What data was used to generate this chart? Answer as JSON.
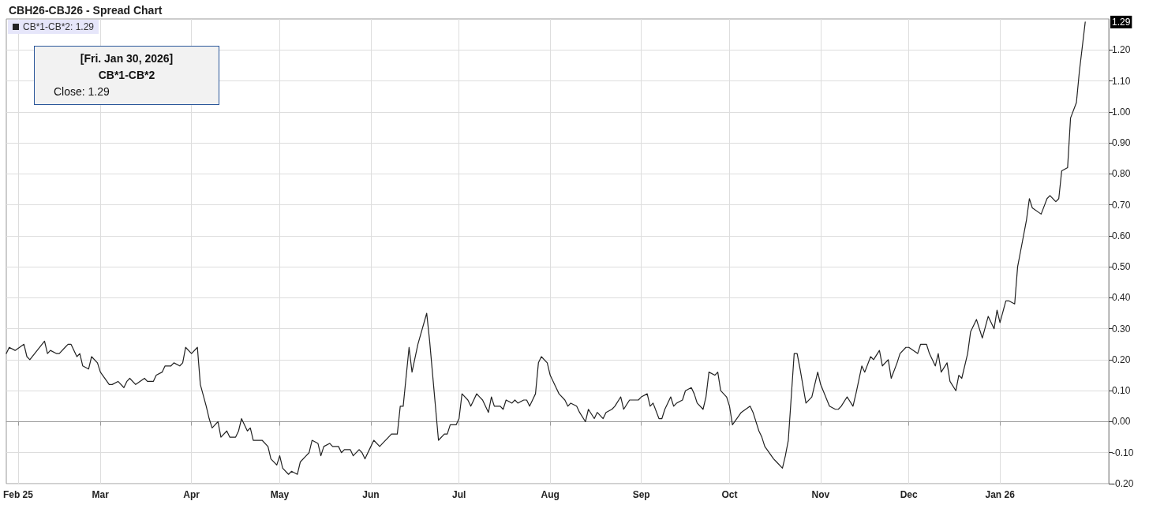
{
  "chart_data": {
    "type": "line",
    "title": "CBH26-CBJ26 - Spread Chart",
    "x": [
      "2025-01-28",
      "2025-01-29",
      "2025-01-31",
      "2025-02-03",
      "2025-02-04",
      "2025-02-05",
      "2025-02-10",
      "2025-02-11",
      "2025-02-12",
      "2025-02-14",
      "2025-02-15",
      "2025-02-17",
      "2025-02-18",
      "2025-02-19",
      "2025-02-21",
      "2025-02-22",
      "2025-02-23",
      "2025-02-25",
      "2025-02-26",
      "2025-02-28",
      "2025-03-01",
      "2025-03-04",
      "2025-03-05",
      "2025-03-07",
      "2025-03-09",
      "2025-03-10",
      "2025-03-11",
      "2025-03-13",
      "2025-03-16",
      "2025-03-17",
      "2025-03-19",
      "2025-03-20",
      "2025-03-22",
      "2025-03-23",
      "2025-03-25",
      "2025-03-26",
      "2025-03-28",
      "2025-03-29",
      "2025-03-30",
      "2025-04-01",
      "2025-04-03",
      "2025-04-04",
      "2025-04-06",
      "2025-04-07",
      "2025-04-08",
      "2025-04-10",
      "2025-04-11",
      "2025-04-13",
      "2025-04-14",
      "2025-04-16",
      "2025-04-17",
      "2025-04-18",
      "2025-04-20",
      "2025-04-21",
      "2025-04-22",
      "2025-04-25",
      "2025-04-27",
      "2025-04-28",
      "2025-04-30",
      "2025-05-01",
      "2025-05-02",
      "2025-05-04",
      "2025-05-05",
      "2025-05-07",
      "2025-05-08",
      "2025-05-10",
      "2025-05-11",
      "2025-05-12",
      "2025-05-14",
      "2025-05-15",
      "2025-05-16",
      "2025-05-18",
      "2025-05-19",
      "2025-05-21",
      "2025-05-22",
      "2025-05-23",
      "2025-05-25",
      "2025-05-26",
      "2025-05-28",
      "2025-05-29",
      "2025-05-30",
      "2025-06-01",
      "2025-06-02",
      "2025-06-04",
      "2025-06-05",
      "2025-06-07",
      "2025-06-08",
      "2025-06-10",
      "2025-06-11",
      "2025-06-12",
      "2025-06-14",
      "2025-06-15",
      "2025-06-17",
      "2025-06-20",
      "2025-06-21",
      "2025-06-24",
      "2025-06-26",
      "2025-06-27",
      "2025-06-28",
      "2025-06-30",
      "2025-07-01",
      "2025-07-02",
      "2025-07-04",
      "2025-07-05",
      "2025-07-07",
      "2025-07-08",
      "2025-07-09",
      "2025-07-11",
      "2025-07-12",
      "2025-07-13",
      "2025-07-15",
      "2025-07-16",
      "2025-07-17",
      "2025-07-19",
      "2025-07-20",
      "2025-07-21",
      "2025-07-23",
      "2025-07-24",
      "2025-07-25",
      "2025-07-27",
      "2025-07-28",
      "2025-07-29",
      "2025-07-31",
      "2025-08-01",
      "2025-08-03",
      "2025-08-04",
      "2025-08-06",
      "2025-08-07",
      "2025-08-08",
      "2025-08-10",
      "2025-08-11",
      "2025-08-13",
      "2025-08-14",
      "2025-08-16",
      "2025-08-17",
      "2025-08-19",
      "2025-08-20",
      "2025-08-22",
      "2025-08-23",
      "2025-08-25",
      "2025-08-26",
      "2025-08-28",
      "2025-08-29",
      "2025-08-31",
      "2025-09-01",
      "2025-09-03",
      "2025-09-04",
      "2025-09-05",
      "2025-09-07",
      "2025-09-08",
      "2025-09-09",
      "2025-09-11",
      "2025-09-12",
      "2025-09-13",
      "2025-09-15",
      "2025-09-16",
      "2025-09-18",
      "2025-09-19",
      "2025-09-20",
      "2025-09-22",
      "2025-09-23",
      "2025-09-24",
      "2025-09-26",
      "2025-09-27",
      "2025-09-28",
      "2025-09-30",
      "2025-10-01",
      "2025-10-02",
      "2025-10-05",
      "2025-10-08",
      "2025-10-09",
      "2025-10-11",
      "2025-10-12",
      "2025-10-13",
      "2025-10-16",
      "2025-10-17",
      "2025-10-19",
      "2025-10-20",
      "2025-10-21",
      "2025-10-23",
      "2025-10-24",
      "2025-10-25",
      "2025-10-27",
      "2025-10-29",
      "2025-10-31",
      "2025-11-01",
      "2025-11-04",
      "2025-11-06",
      "2025-11-07",
      "2025-11-08",
      "2025-11-10",
      "2025-11-12",
      "2025-11-13",
      "2025-11-15",
      "2025-11-16",
      "2025-11-18",
      "2025-11-19",
      "2025-11-21",
      "2025-11-22",
      "2025-11-24",
      "2025-11-25",
      "2025-11-27",
      "2025-11-28",
      "2025-11-30",
      "2025-12-01",
      "2025-12-04",
      "2025-12-05",
      "2025-12-07",
      "2025-12-08",
      "2025-12-10",
      "2025-12-11",
      "2025-12-12",
      "2025-12-14",
      "2025-12-15",
      "2025-12-17",
      "2025-12-18",
      "2025-12-19",
      "2025-12-21",
      "2025-12-22",
      "2025-12-24",
      "2025-12-26",
      "2025-12-28",
      "2025-12-30",
      "2025-12-31",
      "2026-01-01",
      "2026-01-03",
      "2026-01-04",
      "2026-01-06",
      "2026-01-07",
      "2026-01-08",
      "2026-01-10",
      "2026-01-11",
      "2026-01-12",
      "2026-01-15",
      "2026-01-17",
      "2026-01-18",
      "2026-01-20",
      "2026-01-21",
      "2026-01-22",
      "2026-01-24",
      "2026-01-25",
      "2026-01-27",
      "2026-01-28",
      "2026-01-30"
    ],
    "series": [
      {
        "name": "CB*1-CB*2: 1.29",
        "color": "#222222",
        "values": [
          0.22,
          0.24,
          0.23,
          0.25,
          0.21,
          0.2,
          0.26,
          0.22,
          0.23,
          0.22,
          0.22,
          0.24,
          0.25,
          0.25,
          0.21,
          0.22,
          0.18,
          0.17,
          0.21,
          0.19,
          0.16,
          0.12,
          0.12,
          0.13,
          0.11,
          0.13,
          0.14,
          0.12,
          0.14,
          0.13,
          0.13,
          0.15,
          0.16,
          0.18,
          0.18,
          0.19,
          0.18,
          0.19,
          0.24,
          0.22,
          0.24,
          0.12,
          0.05,
          0.01,
          -0.02,
          0.0,
          -0.05,
          -0.03,
          -0.05,
          -0.05,
          -0.03,
          0.01,
          -0.03,
          -0.02,
          -0.06,
          -0.06,
          -0.08,
          -0.12,
          -0.14,
          -0.11,
          -0.15,
          -0.17,
          -0.16,
          -0.17,
          -0.13,
          -0.11,
          -0.1,
          -0.06,
          -0.07,
          -0.11,
          -0.08,
          -0.07,
          -0.08,
          -0.08,
          -0.1,
          -0.09,
          -0.09,
          -0.11,
          -0.09,
          -0.1,
          -0.12,
          -0.08,
          -0.06,
          -0.08,
          -0.07,
          -0.05,
          -0.04,
          -0.04,
          0.05,
          0.05,
          0.24,
          0.16,
          0.25,
          0.35,
          0.26,
          -0.06,
          -0.04,
          -0.04,
          -0.01,
          -0.01,
          0.01,
          0.09,
          0.07,
          0.05,
          0.09,
          0.08,
          0.07,
          0.03,
          0.08,
          0.05,
          0.05,
          0.04,
          0.07,
          0.06,
          0.07,
          0.06,
          0.07,
          0.07,
          0.05,
          0.09,
          0.19,
          0.21,
          0.19,
          0.15,
          0.11,
          0.09,
          0.07,
          0.05,
          0.06,
          0.05,
          0.03,
          0.0,
          0.04,
          0.01,
          0.03,
          0.01,
          0.03,
          0.04,
          0.05,
          0.08,
          0.04,
          0.07,
          0.07,
          0.07,
          0.08,
          0.09,
          0.05,
          0.06,
          0.01,
          0.01,
          0.04,
          0.08,
          0.05,
          0.06,
          0.07,
          0.1,
          0.11,
          0.09,
          0.06,
          0.04,
          0.08,
          0.16,
          0.15,
          0.16,
          0.1,
          0.08,
          0.05,
          -0.01,
          0.03,
          0.05,
          0.03,
          -0.03,
          -0.05,
          -0.08,
          -0.12,
          -0.13,
          -0.15,
          -0.11,
          -0.06,
          0.22,
          0.22,
          0.17,
          0.06,
          0.08,
          0.16,
          0.12,
          0.05,
          0.04,
          0.04,
          0.05,
          0.08,
          0.05,
          0.09,
          0.18,
          0.16,
          0.21,
          0.2,
          0.23,
          0.18,
          0.2,
          0.14,
          0.19,
          0.22,
          0.24,
          0.24,
          0.22,
          0.25,
          0.25,
          0.22,
          0.18,
          0.22,
          0.16,
          0.19,
          0.13,
          0.1,
          0.15,
          0.14,
          0.22,
          0.29,
          0.33,
          0.27,
          0.34,
          0.3,
          0.36,
          0.32,
          0.39,
          0.39,
          0.38,
          0.5,
          0.55,
          0.65,
          0.72,
          0.69,
          0.67,
          0.72,
          0.73,
          0.71,
          0.72,
          0.81,
          0.82,
          0.98,
          1.03,
          1.13,
          1.29
        ]
      }
    ],
    "xlim": [
      "2025-01-28",
      "2026-02-07"
    ],
    "xticks": [
      {
        "value": "2025-02-01",
        "label": "Feb 25"
      },
      {
        "value": "2025-03-01",
        "label": "Mar"
      },
      {
        "value": "2025-04-01",
        "label": "Apr"
      },
      {
        "value": "2025-05-01",
        "label": "May"
      },
      {
        "value": "2025-06-01",
        "label": "Jun"
      },
      {
        "value": "2025-07-01",
        "label": "Jul"
      },
      {
        "value": "2025-08-01",
        "label": "Aug"
      },
      {
        "value": "2025-09-01",
        "label": "Sep"
      },
      {
        "value": "2025-10-01",
        "label": "Oct"
      },
      {
        "value": "2025-11-01",
        "label": "Nov"
      },
      {
        "value": "2025-12-01",
        "label": "Dec"
      },
      {
        "value": "2026-01-01",
        "label": "Jan 26"
      }
    ],
    "ylim": [
      -0.2,
      1.3
    ],
    "yticks": [
      {
        "value": -0.2,
        "label": "-0.20"
      },
      {
        "value": -0.1,
        "label": "-0.10"
      },
      {
        "value": 0,
        "label": "0.00"
      },
      {
        "value": 0.1,
        "label": "0.10"
      },
      {
        "value": 0.2,
        "label": "0.20"
      },
      {
        "value": 0.3,
        "label": "0.30"
      },
      {
        "value": 0.4,
        "label": "0.40"
      },
      {
        "value": 0.5,
        "label": "0.50"
      },
      {
        "value": 0.6,
        "label": "0.60"
      },
      {
        "value": 0.7,
        "label": "0.70"
      },
      {
        "value": 0.8,
        "label": "0.80"
      },
      {
        "value": 0.9,
        "label": "0.90"
      },
      {
        "value": 1.0,
        "label": "1.00"
      },
      {
        "value": 1.1,
        "label": "1.10"
      },
      {
        "value": 1.2,
        "label": "1.20"
      }
    ],
    "grid": true,
    "legend": "top left",
    "marker": "none",
    "line_style": "solid",
    "annotations": [
      "[Fri. Jan 30, 2026]",
      "CB*1-CB*2",
      "Close: 1.29",
      {
        "text": "1.29",
        "x": "2026-01-30",
        "y": 1.29
      }
    ]
  }
}
